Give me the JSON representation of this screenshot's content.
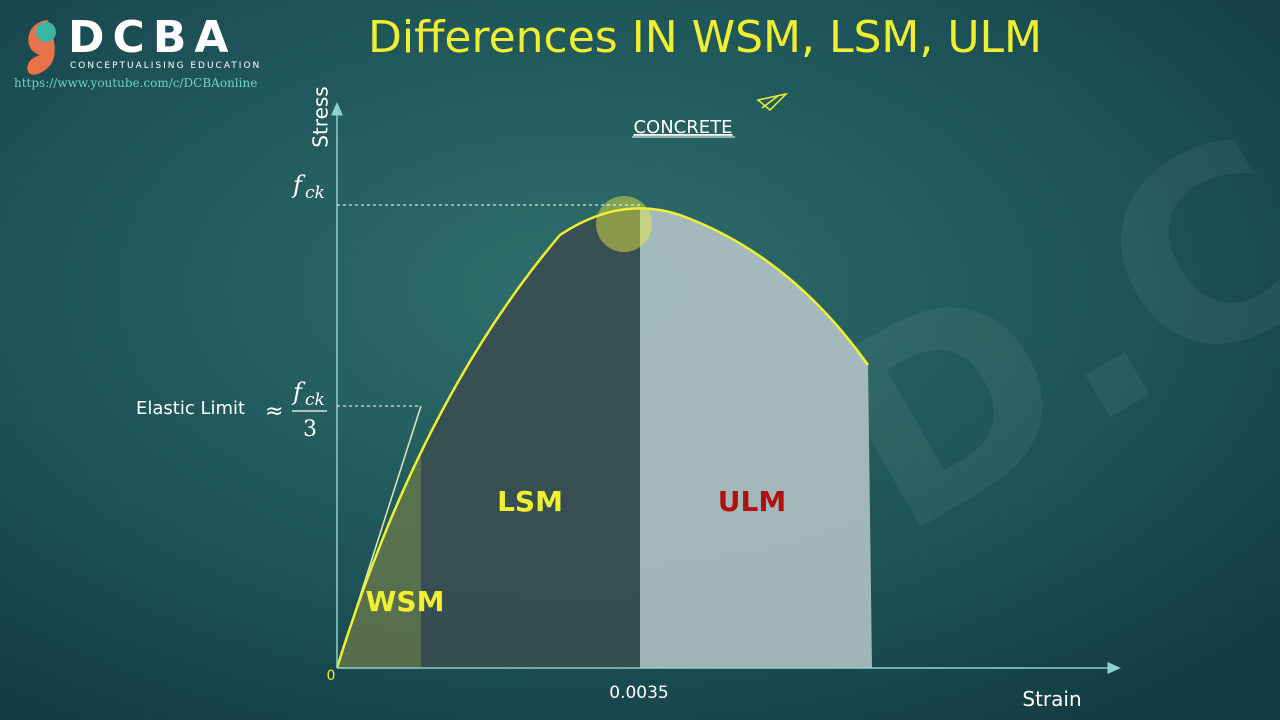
{
  "header": {
    "logo": "DCBA",
    "tagline": "CONCEPTUALISING EDUCATION",
    "url": "https://www.youtube.com/c/DCBAonline",
    "title": "Differences IN WSM, LSM, ULM"
  },
  "diagram": {
    "subject": "CONCRETE",
    "y_axis_label": "Stress",
    "x_axis_label": "Strain",
    "origin": "0",
    "peak_stress": {
      "symbol": "f",
      "subscript": "ck"
    },
    "elastic_limit": {
      "label": "Elastic Limit",
      "approx": "≈",
      "symbol": "f",
      "subscript": "ck",
      "denominator": "3"
    },
    "strain_mark": "0.0035",
    "regions": [
      "WSM",
      "LSM",
      "ULM"
    ]
  }
}
